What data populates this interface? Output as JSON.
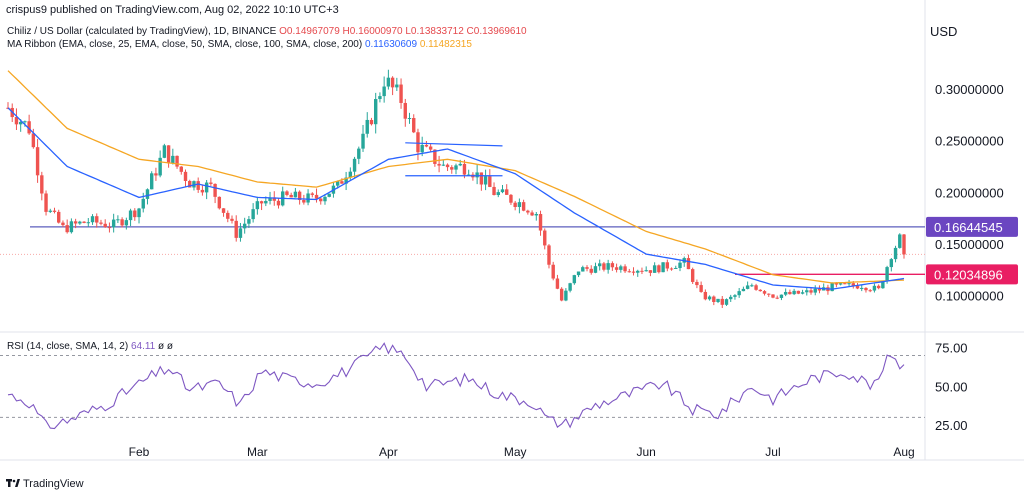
{
  "header": {
    "publisher": "crispus9 published on TradingView.com, Aug 02, 2022 10:10 UTC+3",
    "symbol_line": "Chiliz / US Dollar (calculated by TradingView), 1D, BINANCE",
    "ohlc": "O0.14967079 H0.16000970 L0.13833712 C0.13969610",
    "ma_line_label": "MA Ribbon (EMA, close, 25, EMA, close, 50, SMA, close, 100, SMA, close, 200)",
    "ma1_value": "0.11630609",
    "ma2_value": "0.11482315",
    "currency": "USD"
  },
  "rsi_legend": {
    "label": "RSI (14, close, SMA, 14, 2)",
    "value": "64.11",
    "extra": "ø ø"
  },
  "footer": {
    "brand": "TradingView"
  },
  "colors": {
    "up": "#26a69a",
    "down": "#ef5350",
    "ma_fast": "#2962ff",
    "ma_slow": "#f5a623",
    "rsi": "#7e57c2",
    "horizontal": "#5d5fbd",
    "resistance_tag": "#6b46c1",
    "support_tag": "#e91e63"
  },
  "chart_data": [
    {
      "type": "candlestick",
      "ylim": [
        0.078,
        0.34
      ],
      "y_ticks": [
        {
          "value": 0.3,
          "label": "0.30000000"
        },
        {
          "value": 0.25,
          "label": "0.25000000"
        },
        {
          "value": 0.2,
          "label": "0.20000000"
        },
        {
          "value": 0.15,
          "label": "0.15000000"
        },
        {
          "value": 0.1,
          "label": "0.10000000"
        }
      ],
      "x_ticks": [
        "Feb",
        "Mar",
        "Apr",
        "May",
        "Jun",
        "Jul",
        "Aug"
      ],
      "anchors": [
        [
          "2022-01-01",
          0.282
        ],
        [
          "2022-01-06",
          0.262
        ],
        [
          "2022-01-10",
          0.185
        ],
        [
          "2022-01-14",
          0.165
        ],
        [
          "2022-01-20",
          0.172
        ],
        [
          "2022-01-26",
          0.168
        ],
        [
          "2022-02-01",
          0.185
        ],
        [
          "2022-02-07",
          0.24
        ],
        [
          "2022-02-13",
          0.21
        ],
        [
          "2022-02-18",
          0.205
        ],
        [
          "2022-02-24",
          0.16
        ],
        [
          "2022-03-02",
          0.19
        ],
        [
          "2022-03-08",
          0.195
        ],
        [
          "2022-03-14",
          0.193
        ],
        [
          "2022-03-20",
          0.205
        ],
        [
          "2022-03-26",
          0.25
        ],
        [
          "2022-03-31",
          0.31
        ],
        [
          "2022-04-04",
          0.29
        ],
        [
          "2022-04-08",
          0.245
        ],
        [
          "2022-04-14",
          0.225
        ],
        [
          "2022-04-20",
          0.225
        ],
        [
          "2022-04-26",
          0.2
        ],
        [
          "2022-05-02",
          0.19
        ],
        [
          "2022-05-06",
          0.18
        ],
        [
          "2022-05-09",
          0.13
        ],
        [
          "2022-05-12",
          0.095
        ],
        [
          "2022-05-16",
          0.125
        ],
        [
          "2022-05-24",
          0.128
        ],
        [
          "2022-06-02",
          0.125
        ],
        [
          "2022-06-10",
          0.132
        ],
        [
          "2022-06-14",
          0.1
        ],
        [
          "2022-06-19",
          0.092
        ],
        [
          "2022-06-26",
          0.11
        ],
        [
          "2022-07-01",
          0.1
        ],
        [
          "2022-07-08",
          0.102
        ],
        [
          "2022-07-15",
          0.108
        ],
        [
          "2022-07-22",
          0.11
        ],
        [
          "2022-07-26",
          0.105
        ],
        [
          "2022-07-29",
          0.14
        ],
        [
          "2022-07-31",
          0.155
        ],
        [
          "2022-08-01",
          0.1397
        ]
      ],
      "ema_fast_anchors": [
        [
          "2022-01-01",
          0.282
        ],
        [
          "2022-01-15",
          0.225
        ],
        [
          "2022-02-01",
          0.195
        ],
        [
          "2022-02-15",
          0.208
        ],
        [
          "2022-03-01",
          0.195
        ],
        [
          "2022-03-15",
          0.193
        ],
        [
          "2022-04-01",
          0.232
        ],
        [
          "2022-04-15",
          0.242
        ],
        [
          "2022-05-01",
          0.218
        ],
        [
          "2022-05-15",
          0.18
        ],
        [
          "2022-06-01",
          0.14
        ],
        [
          "2022-06-15",
          0.13
        ],
        [
          "2022-07-01",
          0.11
        ],
        [
          "2022-07-15",
          0.106
        ],
        [
          "2022-08-01",
          0.1163
        ]
      ],
      "ema_slow_anchors": [
        [
          "2022-01-01",
          0.318
        ],
        [
          "2022-01-15",
          0.262
        ],
        [
          "2022-02-01",
          0.232
        ],
        [
          "2022-02-15",
          0.225
        ],
        [
          "2022-03-01",
          0.21
        ],
        [
          "2022-03-15",
          0.205
        ],
        [
          "2022-04-01",
          0.225
        ],
        [
          "2022-04-15",
          0.232
        ],
        [
          "2022-05-01",
          0.221
        ],
        [
          "2022-05-15",
          0.196
        ],
        [
          "2022-06-01",
          0.162
        ],
        [
          "2022-06-15",
          0.145
        ],
        [
          "2022-07-01",
          0.12
        ],
        [
          "2022-07-15",
          0.112
        ],
        [
          "2022-08-01",
          0.1148
        ]
      ],
      "levels": [
        {
          "value": 0.16644545,
          "label": "0.16644545",
          "style": "solid"
        },
        {
          "value": 0.12034896,
          "label": "0.12034896",
          "style": "support"
        }
      ],
      "current_price": 0.1397,
      "channel": {
        "start": "2022-04-05",
        "end": "2022-04-28",
        "upper": [
          0.248,
          0.245
        ],
        "lower": [
          0.216,
          0.216
        ]
      }
    },
    {
      "type": "line",
      "name": "RSI",
      "ylim": [
        18,
        80
      ],
      "y_ticks": [
        {
          "value": 75,
          "label": "75.00"
        },
        {
          "value": 50,
          "label": "50.00"
        },
        {
          "value": 25,
          "label": "25.00"
        }
      ],
      "bands": [
        70,
        30
      ],
      "anchors": [
        [
          "2022-01-01",
          45
        ],
        [
          "2022-01-06",
          40
        ],
        [
          "2022-01-10",
          24
        ],
        [
          "2022-01-15",
          28
        ],
        [
          "2022-01-24",
          38
        ],
        [
          "2022-02-03",
          55
        ],
        [
          "2022-02-08",
          62
        ],
        [
          "2022-02-13",
          48
        ],
        [
          "2022-02-20",
          52
        ],
        [
          "2022-02-25",
          38
        ],
        [
          "2022-03-02",
          60
        ],
        [
          "2022-03-08",
          55
        ],
        [
          "2022-03-15",
          52
        ],
        [
          "2022-03-22",
          60
        ],
        [
          "2022-03-31",
          76
        ],
        [
          "2022-04-05",
          70
        ],
        [
          "2022-04-10",
          50
        ],
        [
          "2022-04-20",
          55
        ],
        [
          "2022-04-27",
          45
        ],
        [
          "2022-05-05",
          40
        ],
        [
          "2022-05-09",
          28
        ],
        [
          "2022-05-13",
          26
        ],
        [
          "2022-05-20",
          38
        ],
        [
          "2022-05-28",
          45
        ],
        [
          "2022-06-05",
          52
        ],
        [
          "2022-06-12",
          35
        ],
        [
          "2022-06-18",
          32
        ],
        [
          "2022-06-26",
          50
        ],
        [
          "2022-07-01",
          42
        ],
        [
          "2022-07-10",
          55
        ],
        [
          "2022-07-18",
          60
        ],
        [
          "2022-07-25",
          50
        ],
        [
          "2022-07-29",
          72
        ],
        [
          "2022-07-31",
          64
        ],
        [
          "2022-08-01",
          64.11
        ]
      ]
    }
  ]
}
